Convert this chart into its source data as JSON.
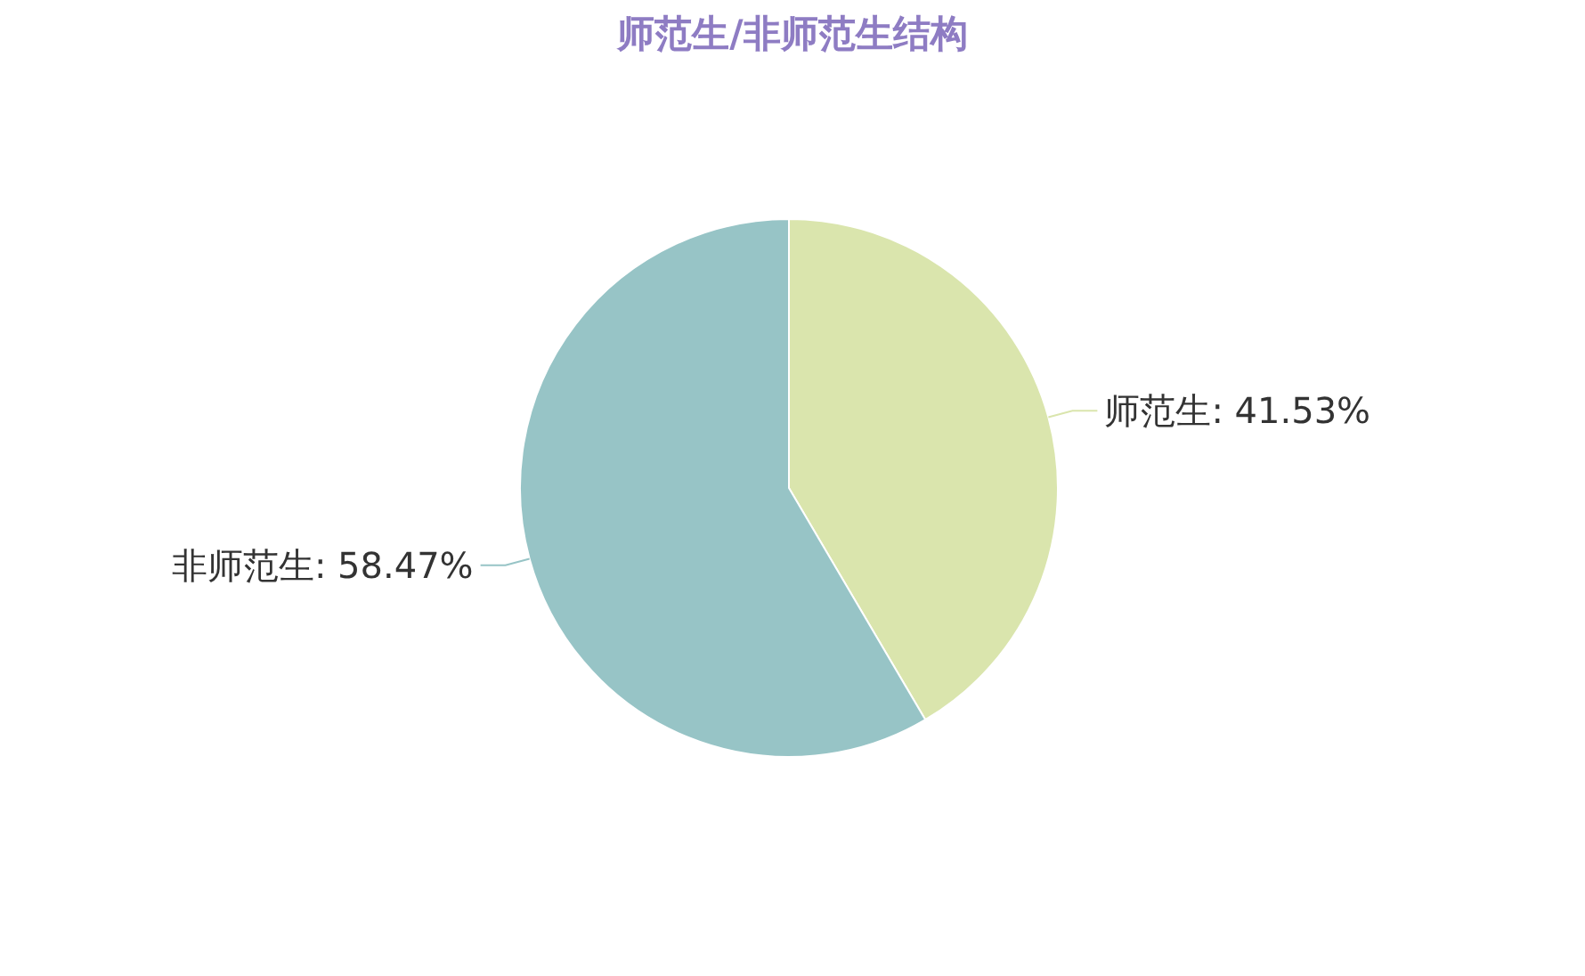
{
  "chart_data": {
    "type": "pie",
    "title": "师范生/非师范生结构",
    "categories": [
      "师范生",
      "非师范生"
    ],
    "values": [
      41.53,
      58.47
    ],
    "value_labels": [
      "41.53%",
      "58.47%"
    ],
    "colors": [
      "#dae5ad",
      "#97c4c6"
    ]
  }
}
